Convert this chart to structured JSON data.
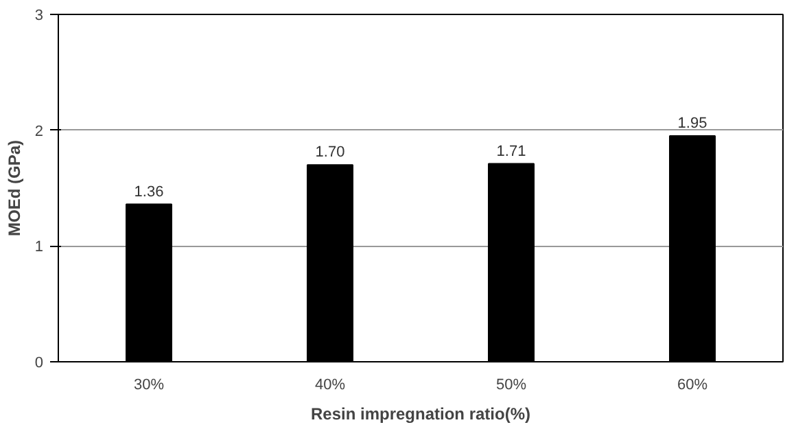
{
  "chart_data": {
    "type": "bar",
    "xlabel": "Resin impregnation ratio(%)",
    "ylabel": "MOEd (GPa)",
    "categories": [
      "30%",
      "40%",
      "50%",
      "60%"
    ],
    "values": [
      1.36,
      1.7,
      1.71,
      1.95
    ],
    "value_labels": [
      "1.36",
      "1.70",
      "1.71",
      "1.95"
    ],
    "color": "#000000",
    "ylim": [
      0,
      3
    ],
    "yticks": [
      0,
      1,
      2,
      3
    ],
    "grid": "y"
  }
}
